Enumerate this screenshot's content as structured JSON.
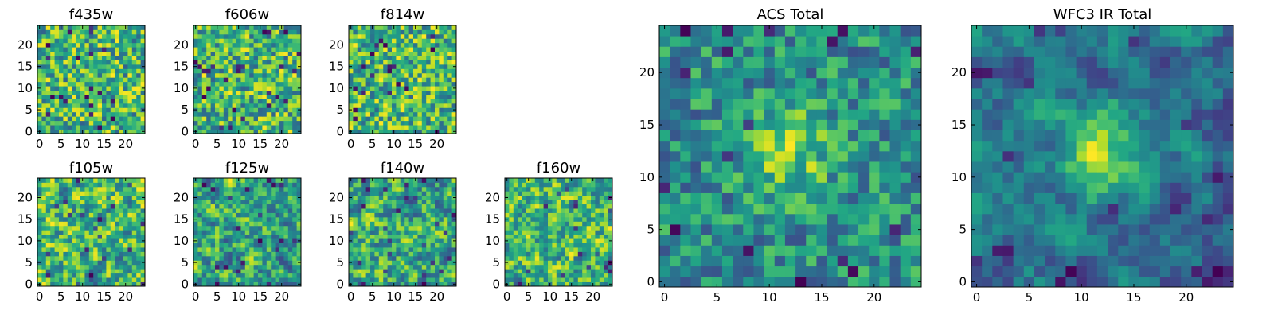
{
  "chart_data": [
    {
      "type": "heatmap",
      "title": "f435w",
      "colormap": "viridis",
      "shape": [
        25,
        25
      ],
      "xlim": [
        0,
        24
      ],
      "ylim": [
        0,
        24
      ],
      "xticks": [
        0,
        5,
        10,
        15,
        20
      ],
      "yticks": [
        0,
        5,
        10,
        15,
        20
      ],
      "pattern": "noise",
      "seed": 11,
      "smoothing": 0
    },
    {
      "type": "heatmap",
      "title": "f606w",
      "colormap": "viridis",
      "shape": [
        25,
        25
      ],
      "xlim": [
        0,
        24
      ],
      "ylim": [
        0,
        24
      ],
      "xticks": [
        0,
        5,
        10,
        15,
        20
      ],
      "yticks": [
        0,
        5,
        10,
        15,
        20
      ],
      "pattern": "noise",
      "seed": 23,
      "smoothing": 0
    },
    {
      "type": "heatmap",
      "title": "f814w",
      "colormap": "viridis",
      "shape": [
        25,
        25
      ],
      "xlim": [
        0,
        24
      ],
      "ylim": [
        0,
        24
      ],
      "xticks": [
        0,
        5,
        10,
        15,
        20
      ],
      "yticks": [
        0,
        5,
        10,
        15,
        20
      ],
      "pattern": "noise",
      "seed": 37,
      "smoothing": 0
    },
    {
      "type": "heatmap",
      "title": "f105w",
      "colormap": "viridis",
      "shape": [
        25,
        25
      ],
      "xlim": [
        0,
        24
      ],
      "ylim": [
        0,
        24
      ],
      "xticks": [
        0,
        5,
        10,
        15,
        20
      ],
      "yticks": [
        0,
        5,
        10,
        15,
        20
      ],
      "pattern": "smooth-noise",
      "seed": 41,
      "smoothing": 1
    },
    {
      "type": "heatmap",
      "title": "f125w",
      "colormap": "viridis",
      "shape": [
        25,
        25
      ],
      "xlim": [
        0,
        24
      ],
      "ylim": [
        0,
        24
      ],
      "xticks": [
        0,
        5,
        10,
        15,
        20
      ],
      "yticks": [
        0,
        5,
        10,
        15,
        20
      ],
      "pattern": "smooth-noise",
      "seed": 53,
      "smoothing": 1
    },
    {
      "type": "heatmap",
      "title": "f140w",
      "colormap": "viridis",
      "shape": [
        25,
        25
      ],
      "xlim": [
        0,
        24
      ],
      "ylim": [
        0,
        24
      ],
      "xticks": [
        0,
        5,
        10,
        15,
        20
      ],
      "yticks": [
        0,
        5,
        10,
        15,
        20
      ],
      "pattern": "smooth-noise",
      "seed": 67,
      "smoothing": 1
    },
    {
      "type": "heatmap",
      "title": "f160w",
      "colormap": "viridis",
      "shape": [
        25,
        25
      ],
      "xlim": [
        0,
        24
      ],
      "ylim": [
        0,
        24
      ],
      "xticks": [
        0,
        5,
        10,
        15,
        20
      ],
      "yticks": [
        0,
        5,
        10,
        15,
        20
      ],
      "pattern": "smooth-noise",
      "seed": 79,
      "smoothing": 1
    },
    {
      "type": "heatmap",
      "title": "ACS Total",
      "colormap": "viridis",
      "shape": [
        25,
        25
      ],
      "xlim": [
        0,
        24
      ],
      "ylim": [
        0,
        24
      ],
      "xticks": [
        0,
        5,
        10,
        15,
        20
      ],
      "yticks": [
        0,
        5,
        10,
        15,
        20
      ],
      "pattern": "noise+center-blob",
      "seed": 97,
      "smoothing": 0
    },
    {
      "type": "heatmap",
      "title": "WFC3 IR Total",
      "colormap": "viridis",
      "shape": [
        25,
        25
      ],
      "xlim": [
        0,
        24
      ],
      "ylim": [
        0,
        24
      ],
      "xticks": [
        0,
        5,
        10,
        15,
        20
      ],
      "yticks": [
        0,
        5,
        10,
        15,
        20
      ],
      "pattern": "smooth-noise+center-blob",
      "seed": 113,
      "smoothing": 2
    }
  ]
}
